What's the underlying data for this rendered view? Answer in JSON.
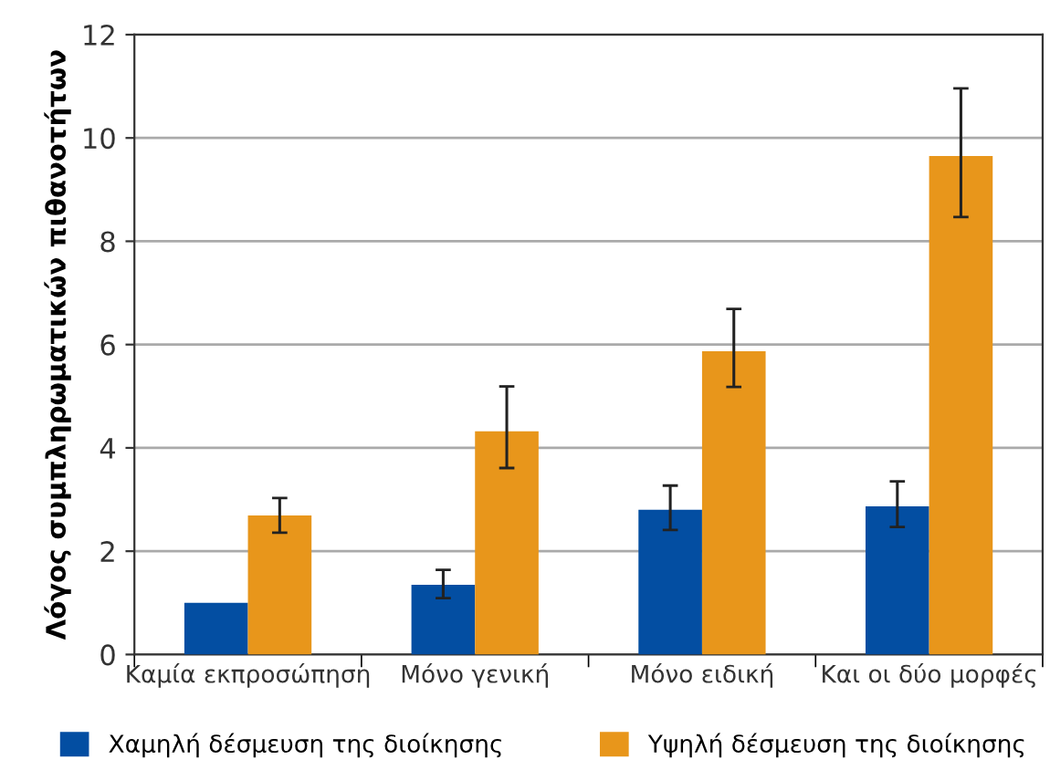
{
  "chart_data": {
    "type": "bar",
    "ylabel": "Λόγος συμπληρωματικών πιθανοτήτων",
    "categories": [
      "Καμία εκπροσώπηση",
      "Μόνο γενική",
      "Μόνο ειδική",
      "Και οι δύο μορφές"
    ],
    "series": [
      {
        "name": "Χαμηλή δέσμευση της διοίκησης",
        "color": "#034ea2",
        "values": [
          1.0,
          1.35,
          2.8,
          2.87
        ],
        "errors": [
          null,
          [
            1.09,
            1.64
          ],
          [
            2.41,
            3.27
          ],
          [
            2.47,
            3.35
          ]
        ]
      },
      {
        "name": "Υψηλή δέσμευση της διοίκησης",
        "color": "#e8961b",
        "values": [
          2.69,
          4.32,
          5.87,
          9.65
        ],
        "errors": [
          [
            2.36,
            3.03
          ],
          [
            3.61,
            5.19
          ],
          [
            5.18,
            6.69
          ],
          [
            8.47,
            10.96
          ]
        ]
      }
    ],
    "ylim": [
      0,
      12
    ],
    "yticks": [
      0,
      2,
      4,
      6,
      8,
      10,
      12
    ],
    "grid": "y",
    "legend": "bottom"
  }
}
